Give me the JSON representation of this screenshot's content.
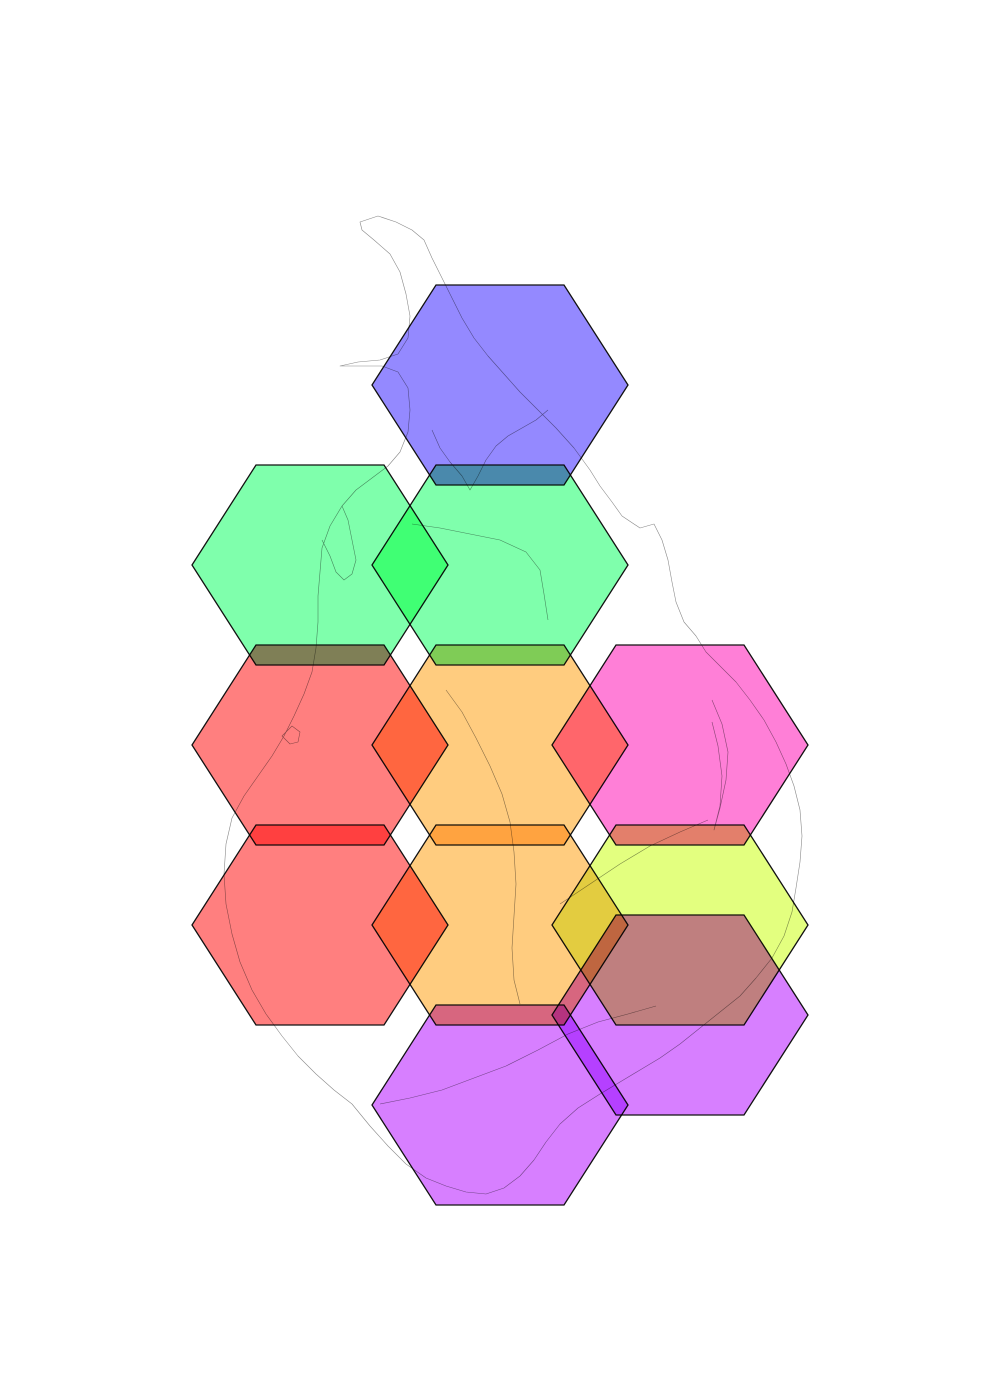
{
  "map": {
    "style": "hexagonal grid overlay on coastline outline",
    "background_color": "#ffffff",
    "coastline_color": "#8a8a8a",
    "hex_outline_color": "#111111"
  },
  "palette": {
    "blue": "#2a14ff",
    "green": "#00ff5a",
    "red": "#ff0000",
    "orange": "#ff9a00",
    "magenta": "#ff00b0",
    "yellow": "#c8ff00",
    "purple": "#b000ff"
  },
  "cells": [
    {
      "id": "hex-north",
      "color": "blue"
    },
    {
      "id": "hex-upper-west",
      "color": "green"
    },
    {
      "id": "hex-upper-center",
      "color": "green"
    },
    {
      "id": "hex-middle-west",
      "color": "red"
    },
    {
      "id": "hex-middle-center",
      "color": "orange"
    },
    {
      "id": "hex-middle-east",
      "color": "magenta"
    },
    {
      "id": "hex-lower-west",
      "color": "red"
    },
    {
      "id": "hex-lower-center",
      "color": "orange"
    },
    {
      "id": "hex-lower-east",
      "color": "yellow"
    },
    {
      "id": "hex-south-east",
      "color": "purple"
    },
    {
      "id": "hex-south",
      "color": "purple"
    }
  ]
}
